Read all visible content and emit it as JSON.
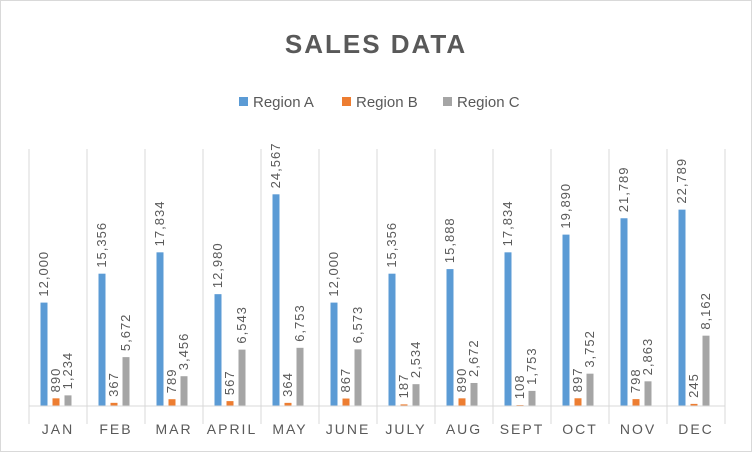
{
  "chart_data": {
    "type": "bar",
    "title": "SALES DATA",
    "categories": [
      "JAN",
      "FEB",
      "MAR",
      "APRIL",
      "MAY",
      "JUNE",
      "JULY",
      "AUG",
      "SEPT",
      "OCT",
      "NOV",
      "DEC"
    ],
    "series": [
      {
        "name": "Region A",
        "color": "#5b9bd5",
        "values": [
          12000,
          15356,
          17834,
          12980,
          24567,
          12000,
          15356,
          15888,
          17834,
          19890,
          21789,
          22789
        ],
        "labels": [
          "12,000",
          "15,356",
          "17,834",
          "12,980",
          "24,567",
          "12,000",
          "15,356",
          "15,888",
          "17,834",
          "19,890",
          "21,789",
          "22,789"
        ]
      },
      {
        "name": "Region B",
        "color": "#ed7d31",
        "values": [
          890,
          367,
          789,
          567,
          364,
          867,
          187,
          890,
          108,
          897,
          798,
          245
        ],
        "labels": [
          "890",
          "367",
          "789",
          "567",
          "364",
          "867",
          "187",
          "890",
          "108",
          "897",
          "798",
          "245"
        ]
      },
      {
        "name": "Region C",
        "color": "#a5a5a5",
        "values": [
          1234,
          5672,
          3456,
          6543,
          6753,
          6573,
          2534,
          2672,
          1753,
          3752,
          2863,
          8162
        ],
        "labels": [
          "1,234",
          "5,672",
          "3,456",
          "6,543",
          "6,753",
          "6,573",
          "2,534",
          "2,672",
          "1,753",
          "3,752",
          "2,863",
          "8,162"
        ]
      }
    ],
    "ylim": [
      0,
      30000
    ],
    "legend_position": "top",
    "gridlines": "vertical category separators"
  }
}
